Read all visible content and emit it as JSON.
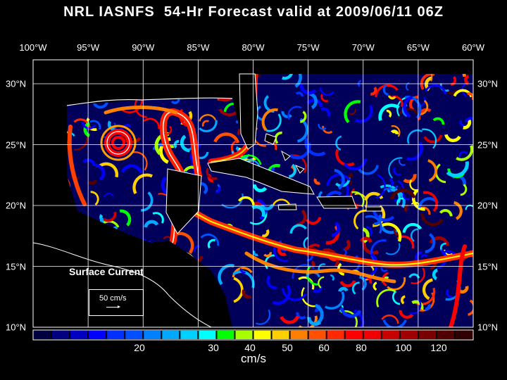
{
  "title": "NRL IASNFS  54-Hr Forecast valid at 2009/06/11 06Z",
  "lon_labels": [
    "100°W",
    "95°W",
    "90°W",
    "85°W",
    "80°W",
    "75°W",
    "70°W",
    "65°W",
    "60°W"
  ],
  "lat_labels": [
    "30°N",
    "25°N",
    "20°N",
    "15°N",
    "10°N"
  ],
  "legend": {
    "title": "Surface Current",
    "reference": "50 cm/s"
  },
  "colorbar": {
    "unit": "cm/s",
    "labels": [
      "20",
      "30",
      "40",
      "50",
      "60",
      "80",
      "100",
      "120"
    ],
    "colors": [
      "#000040",
      "#000080",
      "#0000c0",
      "#0000ff",
      "#0030ff",
      "#0050ff",
      "#0080ff",
      "#00a8ff",
      "#00d0ff",
      "#00ffff",
      "#00ff00",
      "#a8ff00",
      "#ffff00",
      "#ffd000",
      "#ff8000",
      "#ff5000",
      "#ff2800",
      "#ff0000",
      "#f00000",
      "#c80000",
      "#a00000",
      "#780000",
      "#500000",
      "#300000"
    ]
  }
}
